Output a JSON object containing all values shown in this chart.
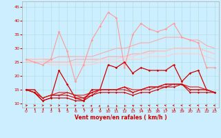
{
  "x": [
    0,
    1,
    2,
    3,
    4,
    5,
    6,
    7,
    8,
    9,
    10,
    11,
    12,
    13,
    14,
    15,
    16,
    17,
    18,
    19,
    20,
    21,
    22,
    23
  ],
  "background_color": "#cceeff",
  "grid_color": "#aadddd",
  "xlabel": "Vent moyen/en rafales ( km/h )",
  "xlabel_color": "#cc0000",
  "yticks": [
    10,
    15,
    20,
    25,
    30,
    35,
    40,
    45
  ],
  "ylim": [
    8.5,
    47
  ],
  "xlim": [
    -0.5,
    23.5
  ],
  "series": [
    {
      "name": "rafales_max",
      "color": "#ff9999",
      "linewidth": 0.8,
      "marker": "D",
      "markersize": 1.8,
      "values": [
        26,
        25,
        24,
        26,
        36,
        29,
        18,
        24,
        33,
        38,
        43,
        41,
        23,
        35,
        39,
        37,
        36,
        37,
        39,
        34,
        33,
        32,
        23,
        23
      ]
    },
    {
      "name": "rafales_moy_upper",
      "color": "#ffaaaa",
      "linewidth": 0.8,
      "marker": null,
      "markersize": 0,
      "values": [
        26,
        26,
        26,
        26,
        27,
        27,
        27,
        27,
        27,
        28,
        29,
        30,
        30,
        31,
        32,
        32,
        33,
        34,
        34,
        34,
        33,
        33,
        31,
        30
      ]
    },
    {
      "name": "rafales_moy_lower",
      "color": "#ffaaaa",
      "linewidth": 0.8,
      "marker": null,
      "markersize": 0,
      "values": [
        25,
        25,
        25,
        25,
        25,
        25,
        26,
        26,
        26,
        26,
        27,
        27,
        27,
        28,
        28,
        29,
        29,
        29,
        30,
        30,
        30,
        30,
        29,
        28
      ]
    },
    {
      "name": "vent_moy_upper",
      "color": "#ffcccc",
      "linewidth": 0.8,
      "marker": null,
      "markersize": 0,
      "values": [
        26,
        26,
        26,
        25,
        25,
        25,
        25,
        25,
        25,
        26,
        26,
        26,
        27,
        27,
        28,
        28,
        29,
        29,
        30,
        30,
        30,
        30,
        29,
        28
      ]
    },
    {
      "name": "vent_moy_lower",
      "color": "#ffcccc",
      "linewidth": 0.8,
      "marker": null,
      "markersize": 0,
      "values": [
        25,
        25,
        25,
        24,
        24,
        24,
        24,
        24,
        24,
        25,
        25,
        25,
        26,
        26,
        26,
        27,
        27,
        27,
        28,
        28,
        28,
        28,
        27,
        26
      ]
    },
    {
      "name": "rafales_inst",
      "color": "#cc0000",
      "linewidth": 0.9,
      "marker": "D",
      "markersize": 1.8,
      "values": [
        15,
        14,
        11,
        12,
        22,
        17,
        12,
        11,
        15,
        15,
        24,
        23,
        25,
        21,
        23,
        22,
        22,
        22,
        24,
        18,
        21,
        22,
        15,
        14
      ]
    },
    {
      "name": "vent_moy1",
      "color": "#dd0000",
      "linewidth": 0.8,
      "marker": "D",
      "markersize": 1.5,
      "values": [
        15,
        14,
        12,
        13,
        13,
        13,
        12,
        12,
        14,
        15,
        15,
        15,
        16,
        14,
        15,
        16,
        16,
        17,
        17,
        17,
        15,
        15,
        15,
        14
      ]
    },
    {
      "name": "vent_moy2",
      "color": "#cc2222",
      "linewidth": 0.8,
      "marker": "D",
      "markersize": 1.5,
      "values": [
        15,
        15,
        12,
        13,
        13,
        14,
        13,
        12,
        13,
        15,
        15,
        15,
        15,
        14,
        15,
        15,
        16,
        16,
        17,
        17,
        15,
        15,
        15,
        14
      ]
    },
    {
      "name": "vent_moy3",
      "color": "#ee1111",
      "linewidth": 0.8,
      "marker": null,
      "markersize": 0,
      "values": [
        15,
        15,
        12,
        13,
        14,
        14,
        13,
        13,
        14,
        15,
        15,
        15,
        16,
        15,
        15,
        16,
        16,
        17,
        17,
        17,
        16,
        16,
        15,
        14
      ]
    },
    {
      "name": "vent_min",
      "color": "#cc0000",
      "linewidth": 0.8,
      "marker": "D",
      "markersize": 1.5,
      "values": [
        15,
        14,
        11,
        12,
        12,
        12,
        11,
        11,
        13,
        14,
        14,
        14,
        14,
        13,
        14,
        14,
        15,
        16,
        16,
        17,
        14,
        14,
        14,
        14
      ]
    }
  ],
  "wind_dir_degrees": [
    90,
    90,
    90,
    100,
    110,
    120,
    135,
    150,
    160,
    170,
    180,
    190,
    200,
    210,
    220,
    230,
    240,
    250,
    260,
    270,
    270,
    270,
    270,
    270
  ]
}
